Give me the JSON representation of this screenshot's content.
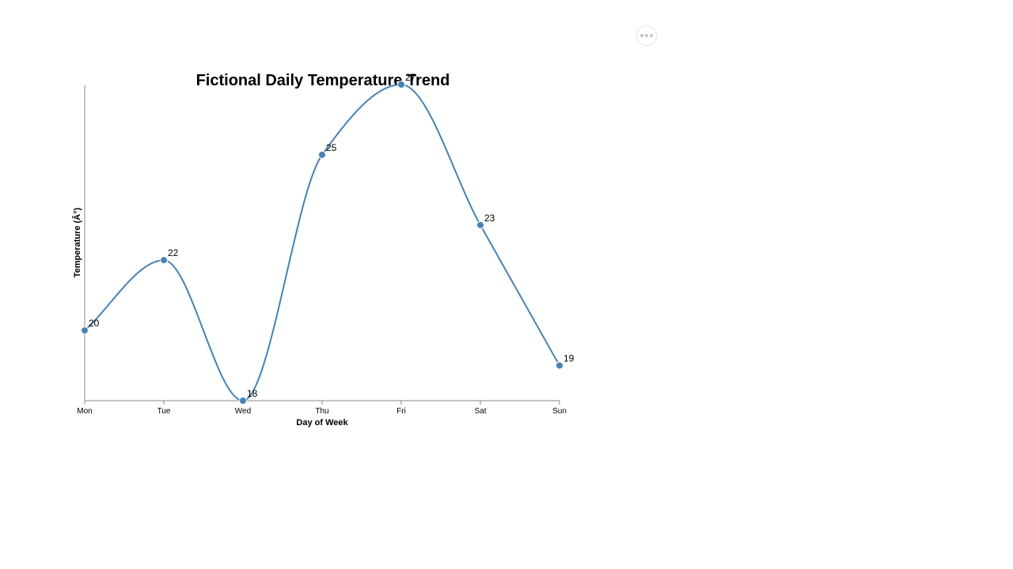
{
  "chart_data": {
    "type": "line",
    "title": "Fictional Daily Temperature Trend",
    "xlabel": "Day of Week",
    "ylabel": "Temperature (Â°)",
    "categories": [
      "Mon",
      "Tue",
      "Wed",
      "Thu",
      "Fri",
      "Sat",
      "Sun"
    ],
    "series": [
      {
        "values": [
          20,
          22,
          18,
          25,
          27,
          23,
          19
        ],
        "color": "#4682b4"
      }
    ],
    "ylim": [
      18,
      27
    ],
    "data_labels": [
      "20",
      "22",
      "18",
      "25",
      "27",
      "23",
      "19"
    ],
    "curve": "smooth",
    "grid": false
  },
  "toolbar": {
    "menu_icon": "more-horizontal-icon"
  }
}
